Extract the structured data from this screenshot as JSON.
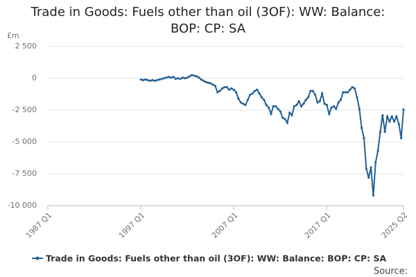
{
  "chart_data": {
    "type": "line",
    "title": "Trade in Goods: Fuels other than oil (3OF): WW: Balance: BOP: CP: SA",
    "y_unit": "£m",
    "source": "Source:",
    "categories": [
      "1987 Q1",
      null,
      null,
      null,
      null,
      null,
      null,
      null,
      null,
      null,
      null,
      null,
      null,
      null,
      null,
      null,
      null,
      null,
      null,
      null,
      null,
      null,
      null,
      null,
      null,
      null,
      null,
      null,
      null,
      null,
      null,
      null,
      null,
      null,
      null,
      null,
      null,
      null,
      null,
      null,
      "1997 Q1",
      null,
      null,
      null,
      null,
      null,
      null,
      null,
      null,
      null,
      null,
      null,
      null,
      null,
      null,
      null,
      null,
      null,
      null,
      null,
      null,
      null,
      null,
      null,
      null,
      null,
      null,
      null,
      null,
      null,
      null,
      null,
      null,
      null,
      null,
      null,
      null,
      null,
      null,
      null,
      "2007 Q1",
      null,
      null,
      null,
      null,
      null,
      null,
      null,
      null,
      null,
      null,
      null,
      null,
      null,
      null,
      null,
      null,
      null,
      null,
      null,
      null,
      null,
      null,
      null,
      null,
      null,
      null,
      null,
      null,
      null,
      null,
      null,
      null,
      null,
      null,
      null,
      null,
      null,
      null,
      null,
      "2017 Q1",
      null,
      null,
      null,
      null,
      null,
      null,
      null,
      null,
      null,
      null,
      null,
      null,
      null,
      null,
      null,
      null,
      null,
      null,
      null,
      null,
      null,
      null,
      null,
      null,
      null,
      null,
      null,
      null,
      null,
      null,
      null,
      null,
      "2025 Q2"
    ],
    "series": [
      {
        "name": "Trade in Goods: Fuels other than oil (3OF): WW: Balance: BOP: CP: SA",
        "color": "#206095",
        "values": [
          null,
          null,
          null,
          null,
          null,
          null,
          null,
          null,
          null,
          null,
          null,
          null,
          null,
          null,
          null,
          null,
          null,
          null,
          null,
          null,
          null,
          null,
          null,
          null,
          null,
          null,
          null,
          null,
          null,
          null,
          null,
          null,
          null,
          null,
          null,
          null,
          null,
          null,
          null,
          null,
          -100,
          -150,
          -100,
          -150,
          -200,
          -150,
          -200,
          -150,
          -100,
          -50,
          0,
          50,
          100,
          50,
          100,
          -50,
          0,
          -50,
          50,
          0,
          50,
          150,
          250,
          200,
          150,
          50,
          -100,
          -200,
          -300,
          -350,
          -400,
          -500,
          -600,
          -1100,
          -1000,
          -800,
          -700,
          -700,
          -900,
          -800,
          -900,
          -1100,
          -1600,
          -1900,
          -2000,
          -2100,
          -1700,
          -1300,
          -1200,
          -1000,
          -900,
          -1200,
          -1500,
          -1700,
          -2100,
          -2300,
          -2800,
          -2200,
          -2200,
          -2400,
          -2600,
          -3100,
          -3200,
          -3500,
          -2700,
          -2900,
          -2200,
          -2100,
          -1800,
          -2200,
          -2000,
          -1700,
          -1500,
          -1000,
          -1000,
          -1300,
          -1900,
          -1800,
          -1200,
          -2000,
          -2100,
          -2800,
          -2300,
          -2200,
          -2400,
          -1900,
          -1700,
          -1100,
          -1100,
          -1100,
          -900,
          -700,
          -800,
          -1500,
          -2400,
          -3900,
          -4700,
          -7100,
          -7800,
          -7000,
          -9200,
          -6600,
          -5700,
          -4200,
          -2900,
          -4200,
          -3000,
          -3400,
          -3000,
          -3400,
          -3000,
          -3600,
          -4700,
          -2450
        ]
      }
    ],
    "ylim": [
      -10000,
      2500
    ],
    "yticks": [
      {
        "value": -10000,
        "label": "-10 000"
      },
      {
        "value": -7500,
        "label": "-7 500"
      },
      {
        "value": -5000,
        "label": "-5 000"
      },
      {
        "value": -2500,
        "label": "-2 500"
      },
      0,
      {
        "value": 2500,
        "label": "2 500"
      }
    ],
    "grid": true
  }
}
